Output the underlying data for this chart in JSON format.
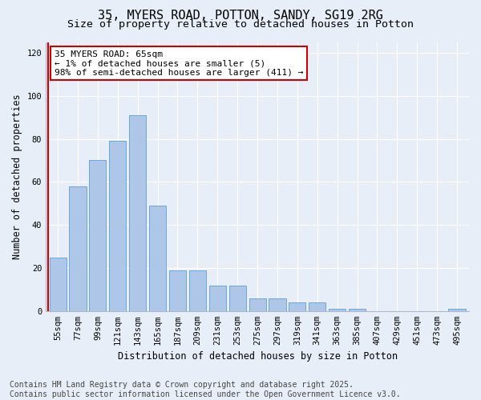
{
  "title": "35, MYERS ROAD, POTTON, SANDY, SG19 2RG",
  "subtitle": "Size of property relative to detached houses in Potton",
  "xlabel": "Distribution of detached houses by size in Potton",
  "ylabel": "Number of detached properties",
  "categories": [
    "55sqm",
    "77sqm",
    "99sqm",
    "121sqm",
    "143sqm",
    "165sqm",
    "187sqm",
    "209sqm",
    "231sqm",
    "253sqm",
    "275sqm",
    "297sqm",
    "319sqm",
    "341sqm",
    "363sqm",
    "385sqm",
    "407sqm",
    "429sqm",
    "451sqm",
    "473sqm",
    "495sqm"
  ],
  "values": [
    25,
    58,
    70,
    79,
    91,
    49,
    19,
    19,
    12,
    12,
    6,
    6,
    4,
    4,
    1,
    1,
    0,
    0,
    0,
    0,
    1
  ],
  "bar_color": "#aec6e8",
  "bar_edge_color": "#5a9fd4",
  "highlight_color": "#cc0000",
  "annotation_title": "35 MYERS ROAD: 65sqm",
  "annotation_line1": "← 1% of detached houses are smaller (5)",
  "annotation_line2": "98% of semi-detached houses are larger (411) →",
  "annotation_box_color": "#ffffff",
  "annotation_box_edge": "#cc0000",
  "ylim": [
    0,
    125
  ],
  "yticks": [
    0,
    20,
    40,
    60,
    80,
    100,
    120
  ],
  "background_color": "#e8eef8",
  "grid_color": "#ffffff",
  "footer_line1": "Contains HM Land Registry data © Crown copyright and database right 2025.",
  "footer_line2": "Contains public sector information licensed under the Open Government Licence v3.0.",
  "title_fontsize": 11,
  "subtitle_fontsize": 9.5,
  "axis_label_fontsize": 8.5,
  "tick_fontsize": 7.5,
  "annotation_fontsize": 8,
  "footer_fontsize": 7
}
